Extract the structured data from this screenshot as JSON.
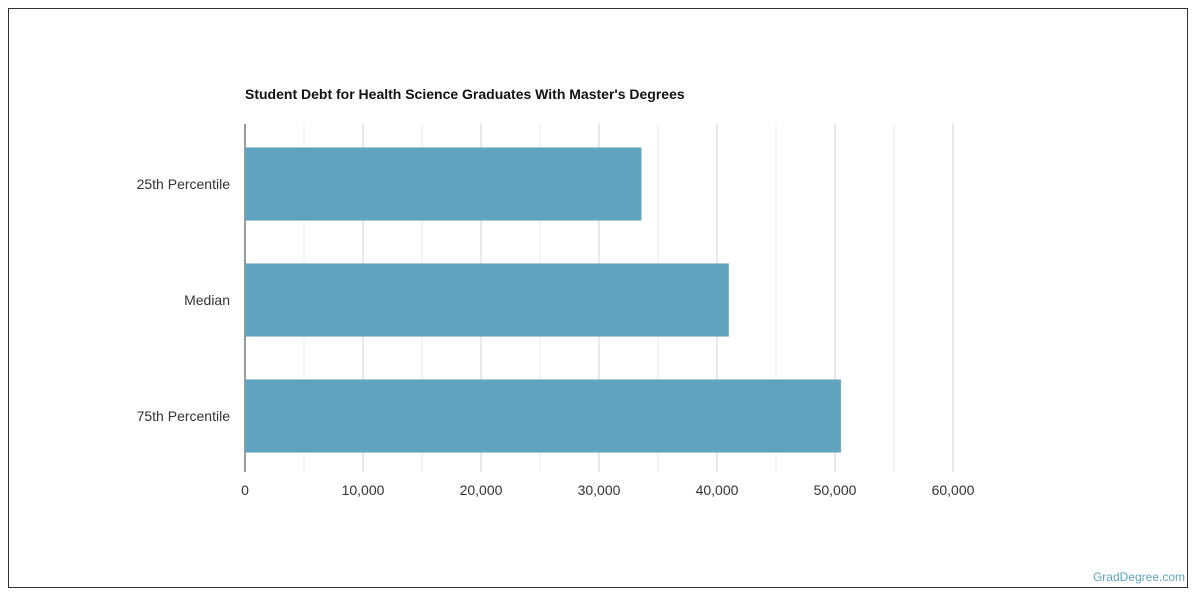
{
  "chart_data": {
    "type": "bar",
    "orientation": "horizontal",
    "title": "Student Debt for Health Science Graduates With Master's Degrees",
    "categories": [
      "25th Percentile",
      "Median",
      "75th Percentile"
    ],
    "values": [
      33600,
      41000,
      50500
    ],
    "xlim": [
      0,
      60000
    ],
    "xticks": [
      "0",
      "10,000",
      "20,000",
      "30,000",
      "40,000",
      "50,000",
      "60,000"
    ],
    "grid": true,
    "bar_color": "#5fa3bf"
  },
  "credit": "GradDegree.com"
}
